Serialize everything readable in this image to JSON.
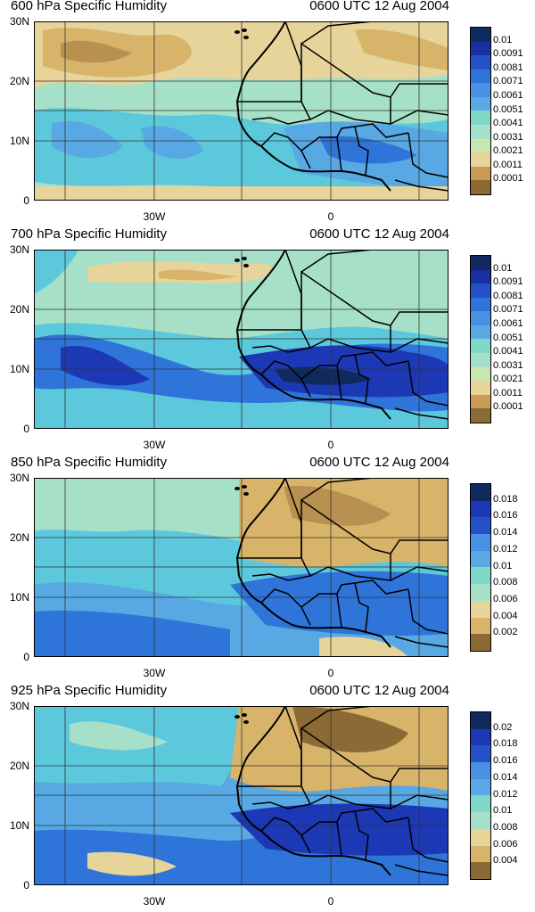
{
  "panels": [
    {
      "title": "600 hPa Specific Humidity",
      "time": "0600 UTC 12 Aug 2004",
      "lat_labels": [
        "30N",
        "20N",
        "10N",
        "0"
      ],
      "lon_labels": [
        "30W",
        "0"
      ],
      "colorbar_labels": [
        "0.01",
        "0.0091",
        "0.0081",
        "0.0071",
        "0.0061",
        "0.0051",
        "0.0041",
        "0.0031",
        "0.0021",
        "0.0011",
        "0.0001"
      ]
    },
    {
      "title": "700 hPa Specific Humidity",
      "time": "0600 UTC 12 Aug 2004",
      "lat_labels": [
        "30N",
        "20N",
        "10N",
        "0"
      ],
      "lon_labels": [
        "30W",
        "0"
      ],
      "colorbar_labels": [
        "0.01",
        "0.0091",
        "0.0081",
        "0.0071",
        "0.0061",
        "0.0051",
        "0.0041",
        "0.0031",
        "0.0021",
        "0.0011",
        "0.0001"
      ]
    },
    {
      "title": "850 hPa Specific Humidity",
      "time": "0600 UTC 12 Aug 2004",
      "lat_labels": [
        "30N",
        "20N",
        "10N",
        "0"
      ],
      "lon_labels": [
        "30W",
        "0"
      ],
      "colorbar_labels": [
        "0.018",
        "0.016",
        "0.014",
        "0.012",
        "0.01",
        "0.008",
        "0.006",
        "0.004",
        "0.002"
      ]
    },
    {
      "title": "925 hPa Specific Humidity",
      "time": "0600 UTC 12 Aug 2004",
      "lat_labels": [
        "30N",
        "20N",
        "10N",
        "0"
      ],
      "lon_labels": [
        "30W",
        "0"
      ],
      "colorbar_labels": [
        "0.02",
        "0.018",
        "0.016",
        "0.014",
        "0.012",
        "0.01",
        "0.008",
        "0.006",
        "0.004"
      ]
    }
  ],
  "colors": {
    "driest": "#8c6a36",
    "dry": "#d8b46a",
    "light_dry": "#e6d49a",
    "mid": "#a6e0c8",
    "cyan": "#5cc8dc",
    "light_blue": "#58a8e4",
    "blue": "#2f74d8",
    "dark_blue": "#1c38b4",
    "darkest": "#102a60"
  }
}
